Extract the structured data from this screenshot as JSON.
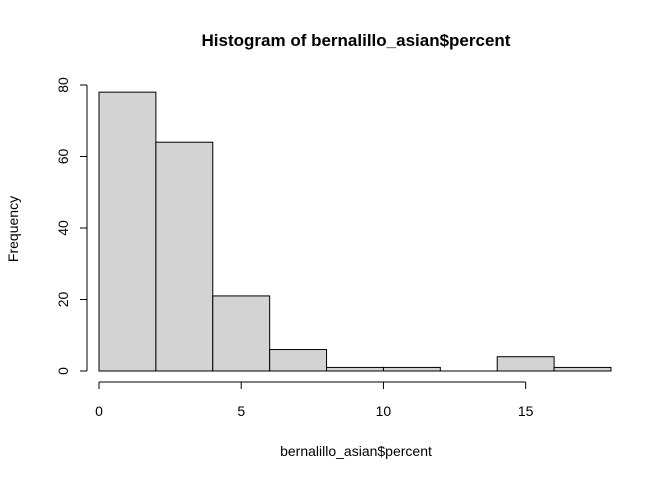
{
  "chart_data": {
    "type": "bar",
    "title": "Histogram of bernalillo_asian$percent",
    "xlabel": "bernalillo_asian$percent",
    "ylabel": "Frequency",
    "bins": [
      {
        "start": 0,
        "end": 2,
        "count": 78
      },
      {
        "start": 2,
        "end": 4,
        "count": 64
      },
      {
        "start": 4,
        "end": 6,
        "count": 21
      },
      {
        "start": 6,
        "end": 8,
        "count": 6
      },
      {
        "start": 8,
        "end": 10,
        "count": 1
      },
      {
        "start": 10,
        "end": 12,
        "count": 1
      },
      {
        "start": 12,
        "end": 14,
        "count": 0
      },
      {
        "start": 14,
        "end": 16,
        "count": 4
      },
      {
        "start": 16,
        "end": 18,
        "count": 1
      }
    ],
    "xlim": [
      0,
      18
    ],
    "ylim": [
      0,
      80
    ],
    "xticks": [
      0,
      5,
      10,
      15
    ],
    "yticks": [
      0,
      20,
      40,
      60,
      80
    ],
    "grid": false,
    "colors": {
      "bar_fill": "#d3d3d3",
      "bar_stroke": "#000000"
    }
  }
}
